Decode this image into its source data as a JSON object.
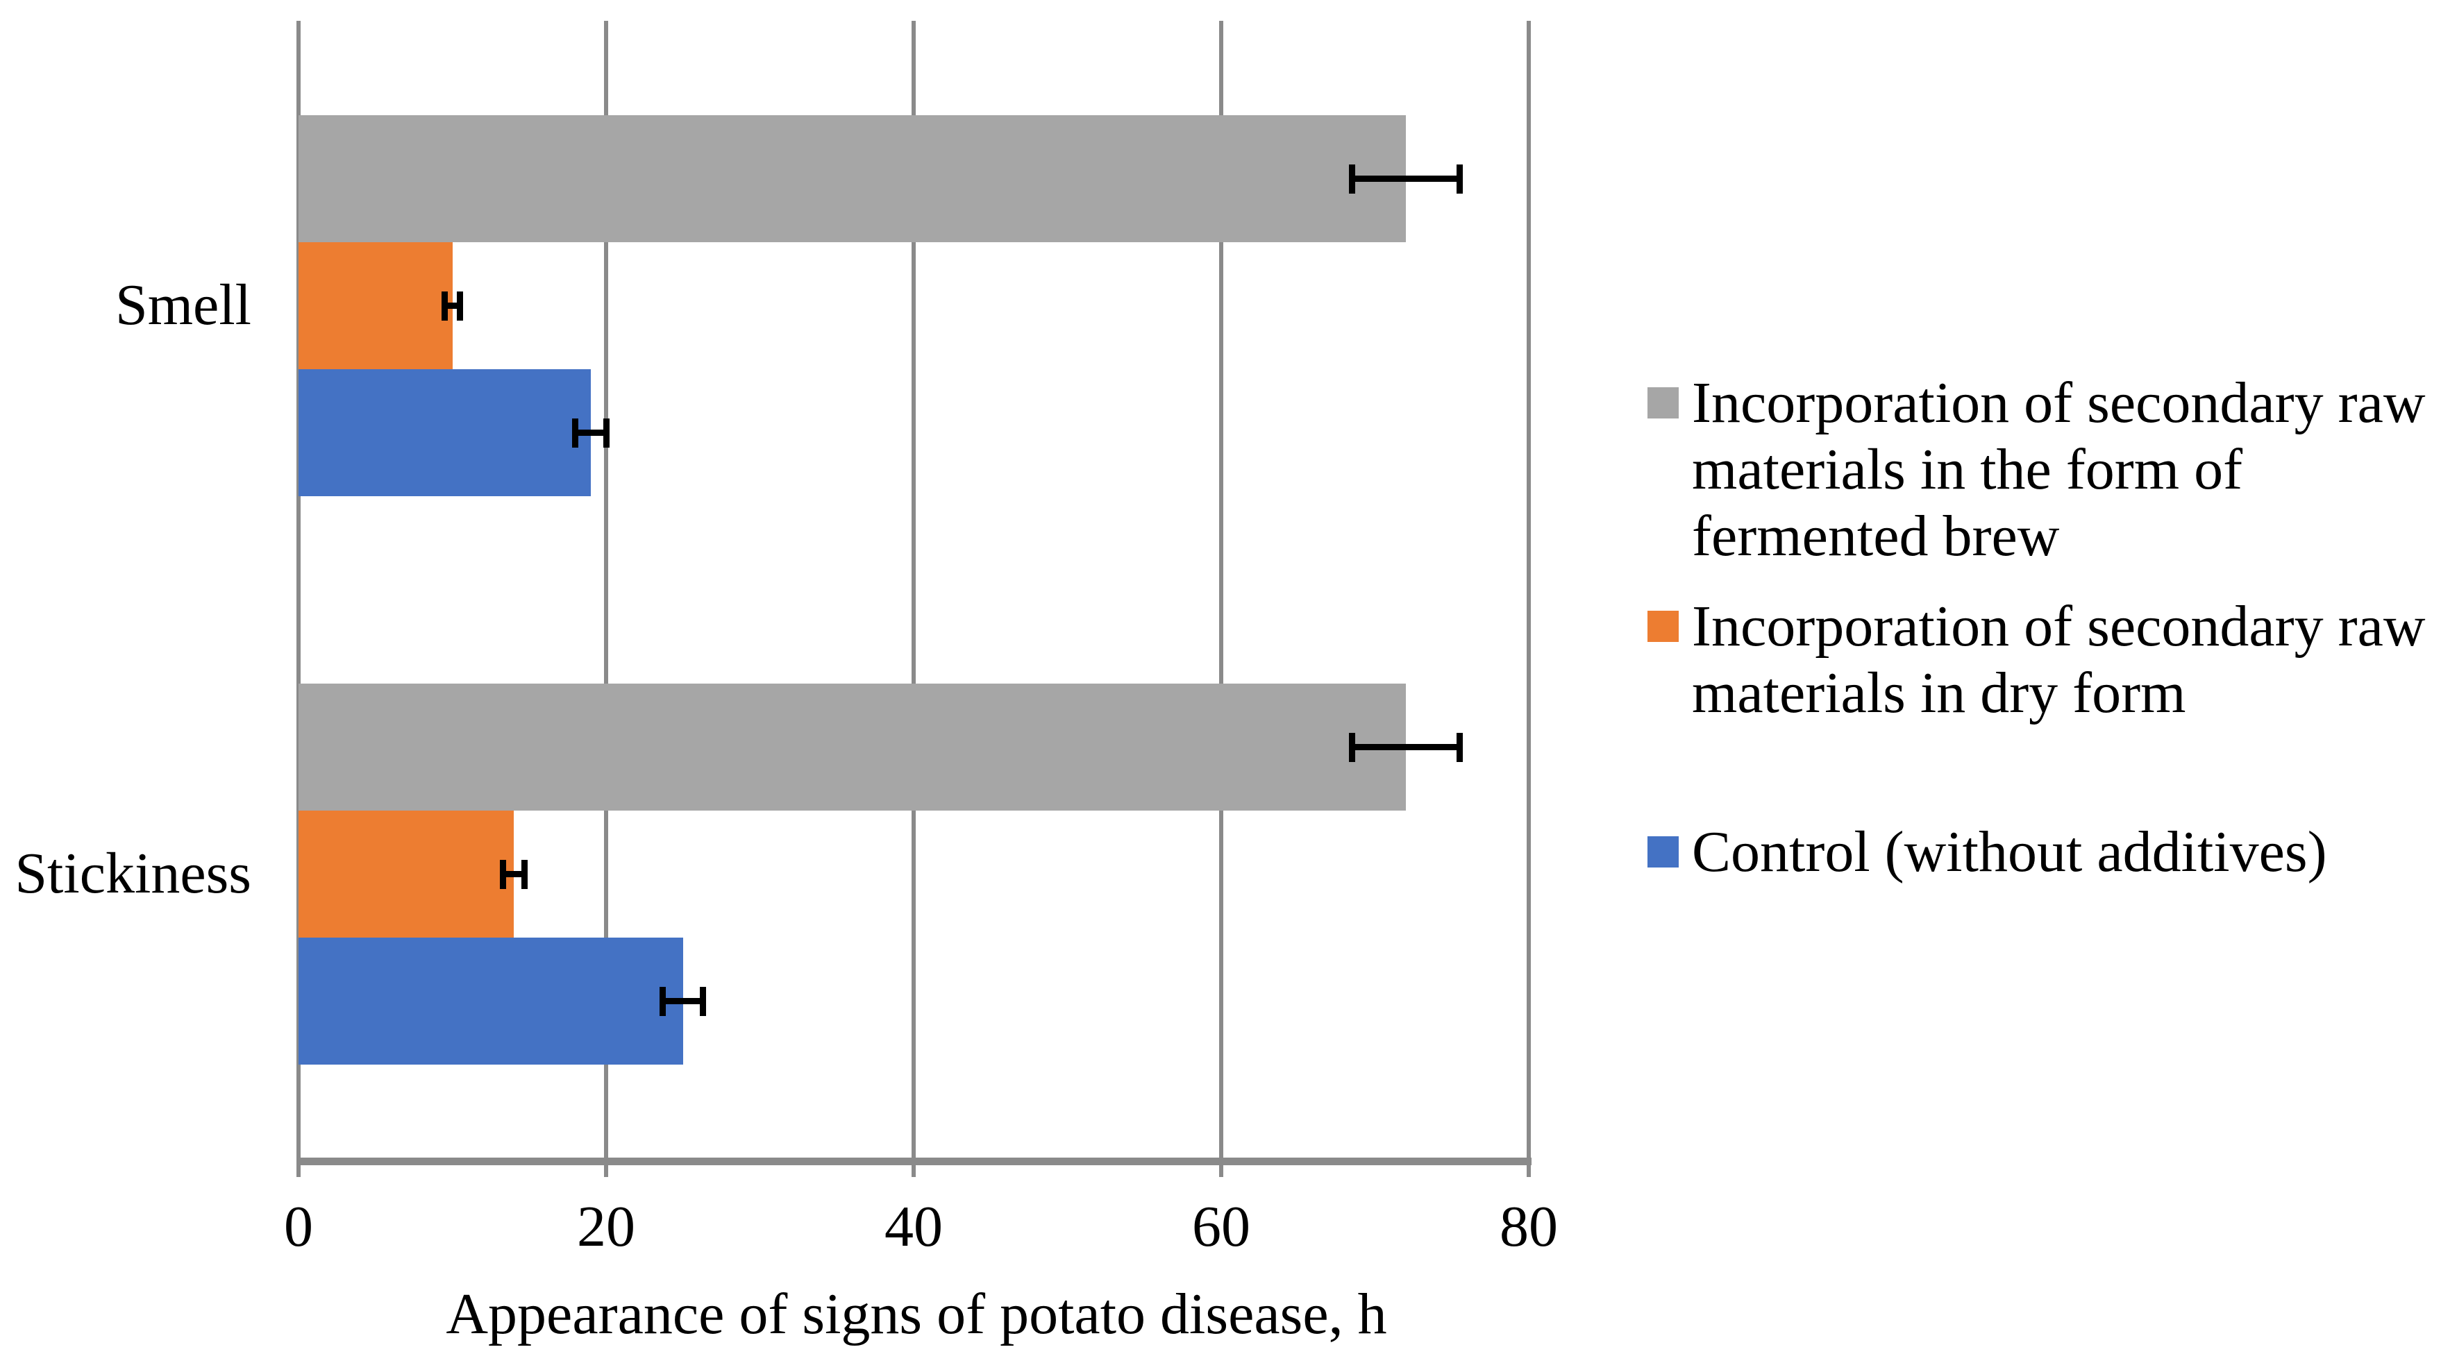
{
  "chart_data": {
    "type": "bar",
    "orientation": "horizontal",
    "xlabel": "Appearance of signs of potato disease, h",
    "xlim": [
      0,
      80
    ],
    "xticks": [
      0,
      20,
      40,
      60,
      80
    ],
    "xtick_labels": [
      "0",
      "20",
      "40",
      "60",
      "80"
    ],
    "grid": "vertical-major",
    "legend_position": "right",
    "categories": [
      "Smell",
      "Stickiness"
    ],
    "series": [
      {
        "key": "fermented-brew",
        "name": "Incorporation of secondary raw materials in the form of fermented brew",
        "color": "#A6A6A6",
        "values": [
          72,
          72
        ],
        "error_bars": [
          3.5,
          3.5
        ]
      },
      {
        "key": "dry-form",
        "name": "Incorporation of secondary raw materials in dry form",
        "color": "#ED7D31",
        "values": [
          10,
          14
        ],
        "error_bars": [
          0.5,
          0.7
        ]
      },
      {
        "key": "control",
        "name": "Control (without additives)",
        "color": "#4472C4",
        "values": [
          19,
          25
        ],
        "error_bars": [
          1.0,
          1.3
        ]
      }
    ]
  },
  "legend": {
    "items": [
      {
        "key": "fermented-brew",
        "lines": [
          "Incorporation of secondary raw",
          "materials in the form of",
          "fermented brew"
        ]
      },
      {
        "key": "dry-form",
        "lines": [
          "Incorporation of secondary raw",
          "materials in dry form"
        ]
      },
      {
        "key": "control",
        "lines": [
          "Control (without additives)"
        ]
      }
    ]
  },
  "colors": {
    "background": "#FFFFFF",
    "gridline": "#8A8A8A",
    "axis_line": "#8A8A8A",
    "error_bar": "#000000",
    "text": "#000000"
  }
}
